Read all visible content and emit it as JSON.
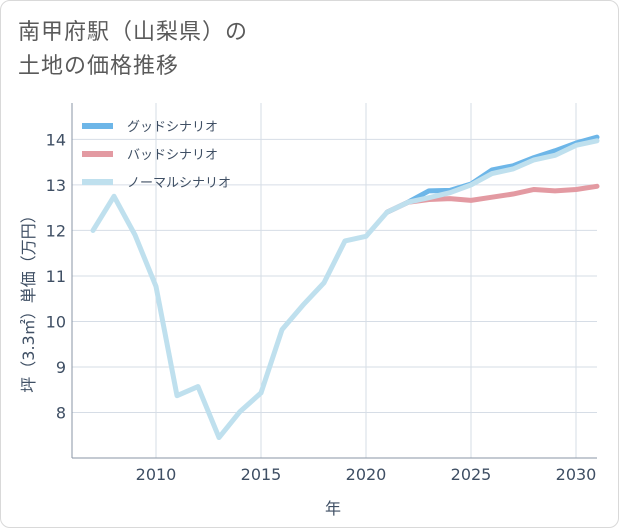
{
  "title": "南甲府駅（山梨県）の\n土地の価格推移",
  "chart_data": {
    "type": "line",
    "xlabel": "年",
    "ylabel": "坪（3.3㎡）単価（万円）",
    "xlim": [
      2006,
      2031
    ],
    "ylim": [
      7,
      14.8
    ],
    "x_ticks": [
      2010,
      2015,
      2020,
      2025,
      2030
    ],
    "y_ticks": [
      8,
      9,
      10,
      11,
      12,
      13,
      14
    ],
    "grid": true,
    "legend_position": "top-left",
    "series": [
      {
        "name": "グッドシナリオ",
        "color": "#6db6e8",
        "x": [
          2021,
          2022,
          2023,
          2024,
          2025,
          2026,
          2027,
          2028,
          2029,
          2030,
          2031
        ],
        "y": [
          12.4,
          12.62,
          12.87,
          12.88,
          13.02,
          13.33,
          13.42,
          13.6,
          13.75,
          13.92,
          14.05
        ]
      },
      {
        "name": "バッドシナリオ",
        "color": "#e39aa2",
        "x": [
          2021,
          2022,
          2023,
          2024,
          2025,
          2026,
          2027,
          2028,
          2029,
          2030,
          2031
        ],
        "y": [
          12.4,
          12.62,
          12.68,
          12.7,
          12.66,
          12.73,
          12.8,
          12.9,
          12.87,
          12.9,
          12.97
        ]
      },
      {
        "name": "ノーマルシナリオ",
        "color": "#bfe0ee",
        "x": [
          2007,
          2008,
          2009,
          2010,
          2011,
          2012,
          2013,
          2014,
          2015,
          2016,
          2017,
          2018,
          2019,
          2020,
          2021,
          2022,
          2023,
          2024,
          2025,
          2026,
          2027,
          2028,
          2029,
          2030,
          2031
        ],
        "y": [
          12.0,
          12.75,
          11.9,
          10.77,
          8.37,
          8.57,
          7.45,
          8.02,
          8.43,
          9.82,
          10.36,
          10.85,
          11.77,
          11.87,
          12.4,
          12.62,
          12.72,
          12.83,
          13.0,
          13.25,
          13.35,
          13.55,
          13.65,
          13.87,
          13.97
        ]
      }
    ]
  }
}
